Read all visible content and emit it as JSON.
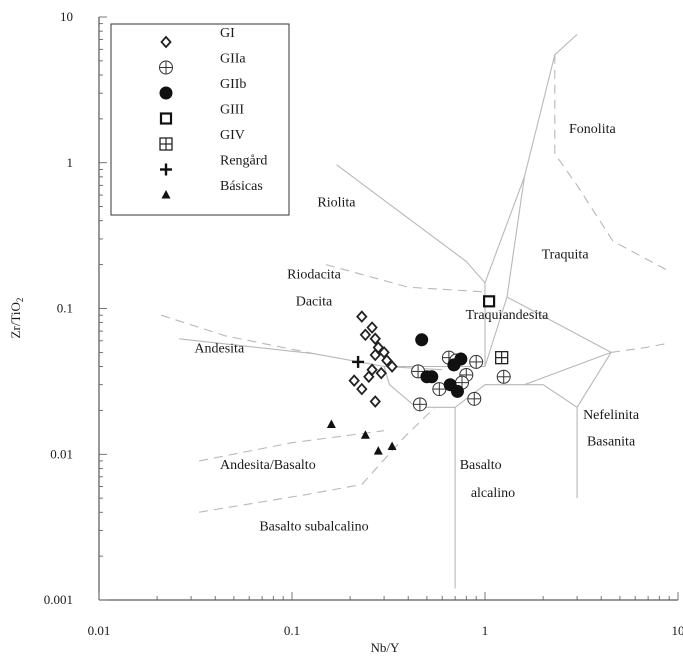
{
  "chart_data": {
    "type": "scatter",
    "title": "",
    "xlabel": "Nb/Y",
    "ylabel": "Zr/TiO",
    "ylabel_subscript": "2",
    "xscale": "log",
    "yscale": "log",
    "xlim": [
      0.01,
      10
    ],
    "ylim": [
      0.001,
      10
    ],
    "x_tick_labels": [
      "0.01",
      "0.1",
      "1",
      "10"
    ],
    "y_tick_labels": [
      "0.001",
      "0.01",
      "0.1",
      "1",
      "10"
    ],
    "grid": false,
    "legend_position": "top-left",
    "field_labels": [
      {
        "text": "Fonolita",
        "x": 3.6,
        "y": 1.6
      },
      {
        "text": "Riolita",
        "x": 0.17,
        "y": 0.5
      },
      {
        "text": "Riodacita",
        "x": 0.13,
        "y": 0.16
      },
      {
        "text": "Dacita",
        "x": 0.13,
        "y": 0.105
      },
      {
        "text": "Traquita",
        "x": 2.6,
        "y": 0.22
      },
      {
        "text": "Traquiandesita",
        "x": 1.3,
        "y": 0.085
      },
      {
        "text": "Andesita",
        "x": 0.042,
        "y": 0.05
      },
      {
        "text": "Nefelinita",
        "x": 4.5,
        "y": 0.0175
      },
      {
        "text": "Basanita",
        "x": 4.5,
        "y": 0.0115
      },
      {
        "text": "Andesita/Basalto",
        "x": 0.075,
        "y": 0.0079
      },
      {
        "text": "Basalto",
        "x": 0.95,
        "y": 0.0079
      },
      {
        "text": "alcalino",
        "x": 1.1,
        "y": 0.0051
      },
      {
        "text": "Basalto subalcalino",
        "x": 0.13,
        "y": 0.003
      }
    ],
    "series": [
      {
        "name": "GI",
        "marker": "diamond-open",
        "points": [
          [
            0.23,
            0.088
          ],
          [
            0.26,
            0.074
          ],
          [
            0.24,
            0.066
          ],
          [
            0.27,
            0.062
          ],
          [
            0.28,
            0.054
          ],
          [
            0.3,
            0.05
          ],
          [
            0.27,
            0.048
          ],
          [
            0.31,
            0.044
          ],
          [
            0.33,
            0.04
          ],
          [
            0.26,
            0.038
          ],
          [
            0.29,
            0.036
          ],
          [
            0.25,
            0.034
          ],
          [
            0.21,
            0.032
          ],
          [
            0.23,
            0.028
          ],
          [
            0.27,
            0.023
          ]
        ]
      },
      {
        "name": "GIIa",
        "marker": "circle-cross",
        "points": [
          [
            0.65,
            0.046
          ],
          [
            0.71,
            0.044
          ],
          [
            0.9,
            0.043
          ],
          [
            0.45,
            0.037
          ],
          [
            0.8,
            0.035
          ],
          [
            0.76,
            0.031
          ],
          [
            1.25,
            0.034
          ],
          [
            0.58,
            0.028
          ],
          [
            0.46,
            0.022
          ],
          [
            0.88,
            0.024
          ]
        ]
      },
      {
        "name": "GIIb",
        "marker": "circle-filled",
        "points": [
          [
            0.47,
            0.061
          ],
          [
            0.75,
            0.045
          ],
          [
            0.69,
            0.041
          ],
          [
            0.5,
            0.034
          ],
          [
            0.53,
            0.034
          ],
          [
            0.66,
            0.03
          ],
          [
            0.72,
            0.027
          ]
        ]
      },
      {
        "name": "GIII",
        "marker": "square-open",
        "points": [
          [
            1.05,
            0.112
          ]
        ]
      },
      {
        "name": "GIV",
        "marker": "square-cross",
        "points": [
          [
            1.22,
            0.046
          ]
        ]
      },
      {
        "name": "Rengård",
        "marker": "plus",
        "points": [
          [
            0.22,
            0.043
          ]
        ]
      },
      {
        "name": "Básicas",
        "marker": "triangle-filled",
        "points": [
          [
            0.16,
            0.016
          ],
          [
            0.24,
            0.0135
          ],
          [
            0.33,
            0.0113
          ],
          [
            0.28,
            0.0105
          ]
        ]
      }
    ],
    "boundaries_solid": [
      [
        [
          0.026,
          0.062
        ],
        [
          0.13,
          0.049
        ],
        [
          0.3,
          0.04
        ],
        [
          0.6,
          0.038
        ]
      ],
      [
        [
          0.3,
          0.04
        ],
        [
          0.55,
          0.04
        ],
        [
          1.0,
          0.04
        ]
      ],
      [
        [
          0.3,
          0.04
        ],
        [
          0.32,
          0.03
        ],
        [
          0.44,
          0.021
        ],
        [
          0.7,
          0.021
        ]
      ],
      [
        [
          0.7,
          0.0012
        ],
        [
          0.7,
          0.021
        ]
      ],
      [
        [
          0.7,
          0.021
        ],
        [
          1.0,
          0.03
        ],
        [
          2.0,
          0.03
        ],
        [
          3.0,
          0.021
        ],
        [
          3.0,
          0.005
        ]
      ],
      [
        [
          1.0,
          0.04
        ],
        [
          1.0,
          0.15
        ],
        [
          0.8,
          0.21
        ],
        [
          0.17,
          0.97
        ]
      ],
      [
        [
          1.0,
          0.15
        ],
        [
          1.6,
          0.8
        ],
        [
          2.3,
          5.5
        ],
        [
          3.0,
          7.6
        ]
      ],
      [
        [
          1.3,
          0.12
        ],
        [
          1.6,
          0.8
        ]
      ],
      [
        [
          1.0,
          0.04
        ],
        [
          1.3,
          0.12
        ],
        [
          4.5,
          0.05
        ]
      ],
      [
        [
          4.5,
          0.05
        ],
        [
          3.0,
          0.021
        ]
      ],
      [
        [
          4.5,
          0.05
        ],
        [
          1.6,
          0.03
        ]
      ]
    ],
    "boundaries_dashed": [
      [
        [
          0.021,
          0.09
        ],
        [
          0.045,
          0.065
        ],
        [
          0.13,
          0.049
        ]
      ],
      [
        [
          0.15,
          0.2
        ],
        [
          0.4,
          0.14
        ],
        [
          1.0,
          0.13
        ]
      ],
      [
        [
          0.033,
          0.004
        ],
        [
          0.12,
          0.0053
        ],
        [
          0.23,
          0.0062
        ],
        [
          0.38,
          0.013
        ],
        [
          0.55,
          0.021
        ]
      ],
      [
        [
          0.033,
          0.009
        ],
        [
          0.1,
          0.012
        ],
        [
          0.3,
          0.0145
        ]
      ],
      [
        [
          2.3,
          5.5
        ],
        [
          2.3,
          1.15
        ],
        [
          3.0,
          0.7
        ],
        [
          4.6,
          0.29
        ],
        [
          9.0,
          0.18
        ]
      ],
      [
        [
          4.5,
          0.05
        ],
        [
          6.8,
          0.054
        ],
        [
          9.0,
          0.058
        ]
      ]
    ]
  }
}
